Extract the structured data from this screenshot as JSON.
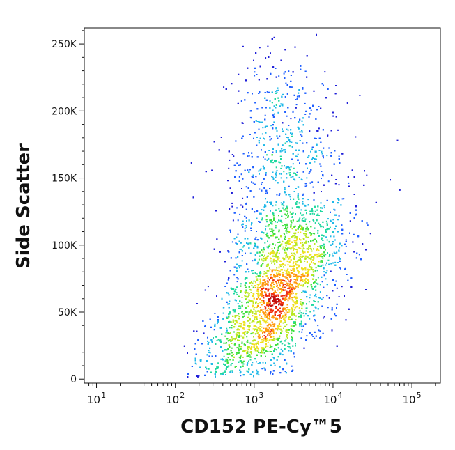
{
  "chart_data": {
    "type": "scatter",
    "subtype": "flow-cytometry-density-dot-plot",
    "title": "",
    "xlabel": "CD152 PE-Cy™5",
    "ylabel": "Side Scatter",
    "x_scale": "log",
    "y_scale": "linear",
    "xlim": [
      7,
      230000
    ],
    "ylim": [
      -3000,
      262000
    ],
    "x_ticks": [
      {
        "value": 10,
        "base": "10",
        "exp": "1"
      },
      {
        "value": 100,
        "base": "10",
        "exp": "2"
      },
      {
        "value": 1000,
        "base": "10",
        "exp": "3"
      },
      {
        "value": 10000,
        "base": "10",
        "exp": "4"
      },
      {
        "value": 100000,
        "base": "10",
        "exp": "5"
      }
    ],
    "y_ticks": [
      {
        "value": 0,
        "label": "0"
      },
      {
        "value": 50000,
        "label": "50K"
      },
      {
        "value": 100000,
        "label": "100K"
      },
      {
        "value": 150000,
        "label": "150K"
      },
      {
        "value": 200000,
        "label": "200K"
      },
      {
        "value": 250000,
        "label": "250K"
      }
    ],
    "grid": false,
    "legend": "none",
    "population": {
      "description_values": "main event cloud",
      "peak_x": 1600,
      "peak_y": 55000,
      "x_range_bulk": [
        300,
        10000
      ],
      "y_range_bulk": [
        10000,
        150000
      ],
      "sparse_upper_tail_x": 2500,
      "sparse_upper_tail_y": 250000
    },
    "density_colors": [
      "#1f1fd8",
      "#1f5fff",
      "#1fb8e8",
      "#20d8a0",
      "#40e040",
      "#b8e820",
      "#f0e020",
      "#ff9a10",
      "#f03010",
      "#c01010"
    ]
  }
}
